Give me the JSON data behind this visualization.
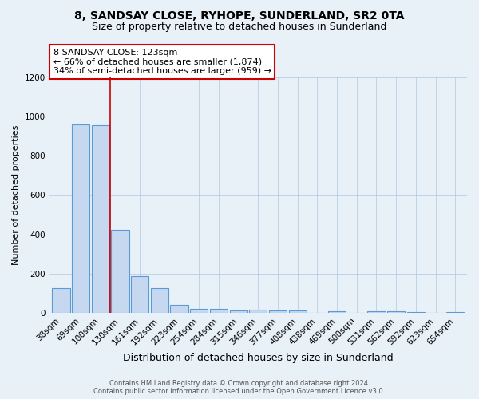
{
  "title1": "8, SANDSAY CLOSE, RYHOPE, SUNDERLAND, SR2 0TA",
  "title2": "Size of property relative to detached houses in Sunderland",
  "xlabel": "Distribution of detached houses by size in Sunderland",
  "ylabel": "Number of detached properties",
  "categories": [
    "38sqm",
    "69sqm",
    "100sqm",
    "130sqm",
    "161sqm",
    "192sqm",
    "223sqm",
    "254sqm",
    "284sqm",
    "315sqm",
    "346sqm",
    "377sqm",
    "408sqm",
    "438sqm",
    "469sqm",
    "500sqm",
    "531sqm",
    "562sqm",
    "592sqm",
    "623sqm",
    "654sqm"
  ],
  "values": [
    125,
    960,
    955,
    425,
    185,
    125,
    42,
    20,
    20,
    12,
    15,
    12,
    10,
    0,
    8,
    0,
    8,
    8,
    5,
    0,
    5
  ],
  "bar_color": "#c5d8f0",
  "bar_edge_color": "#5b9bd5",
  "vline_x_index": 2.5,
  "vline_color": "#cc0000",
  "annotation_line1": "8 SANDSAY CLOSE: 123sqm",
  "annotation_line2": "← 66% of detached houses are smaller (1,874)",
  "annotation_line3": "34% of semi-detached houses are larger (959) →",
  "annotation_box_color": "#ffffff",
  "annotation_box_edge_color": "#cc0000",
  "ylim": [
    0,
    1200
  ],
  "yticks": [
    0,
    200,
    400,
    600,
    800,
    1000,
    1200
  ],
  "bg_color": "#e8f0f8",
  "footer_text": "Contains HM Land Registry data © Crown copyright and database right 2024.\nContains public sector information licensed under the Open Government Licence v3.0.",
  "title1_fontsize": 10,
  "title2_fontsize": 9,
  "xlabel_fontsize": 9,
  "ylabel_fontsize": 8,
  "tick_fontsize": 7.5,
  "annotation_fontsize": 8,
  "footer_fontsize": 6
}
